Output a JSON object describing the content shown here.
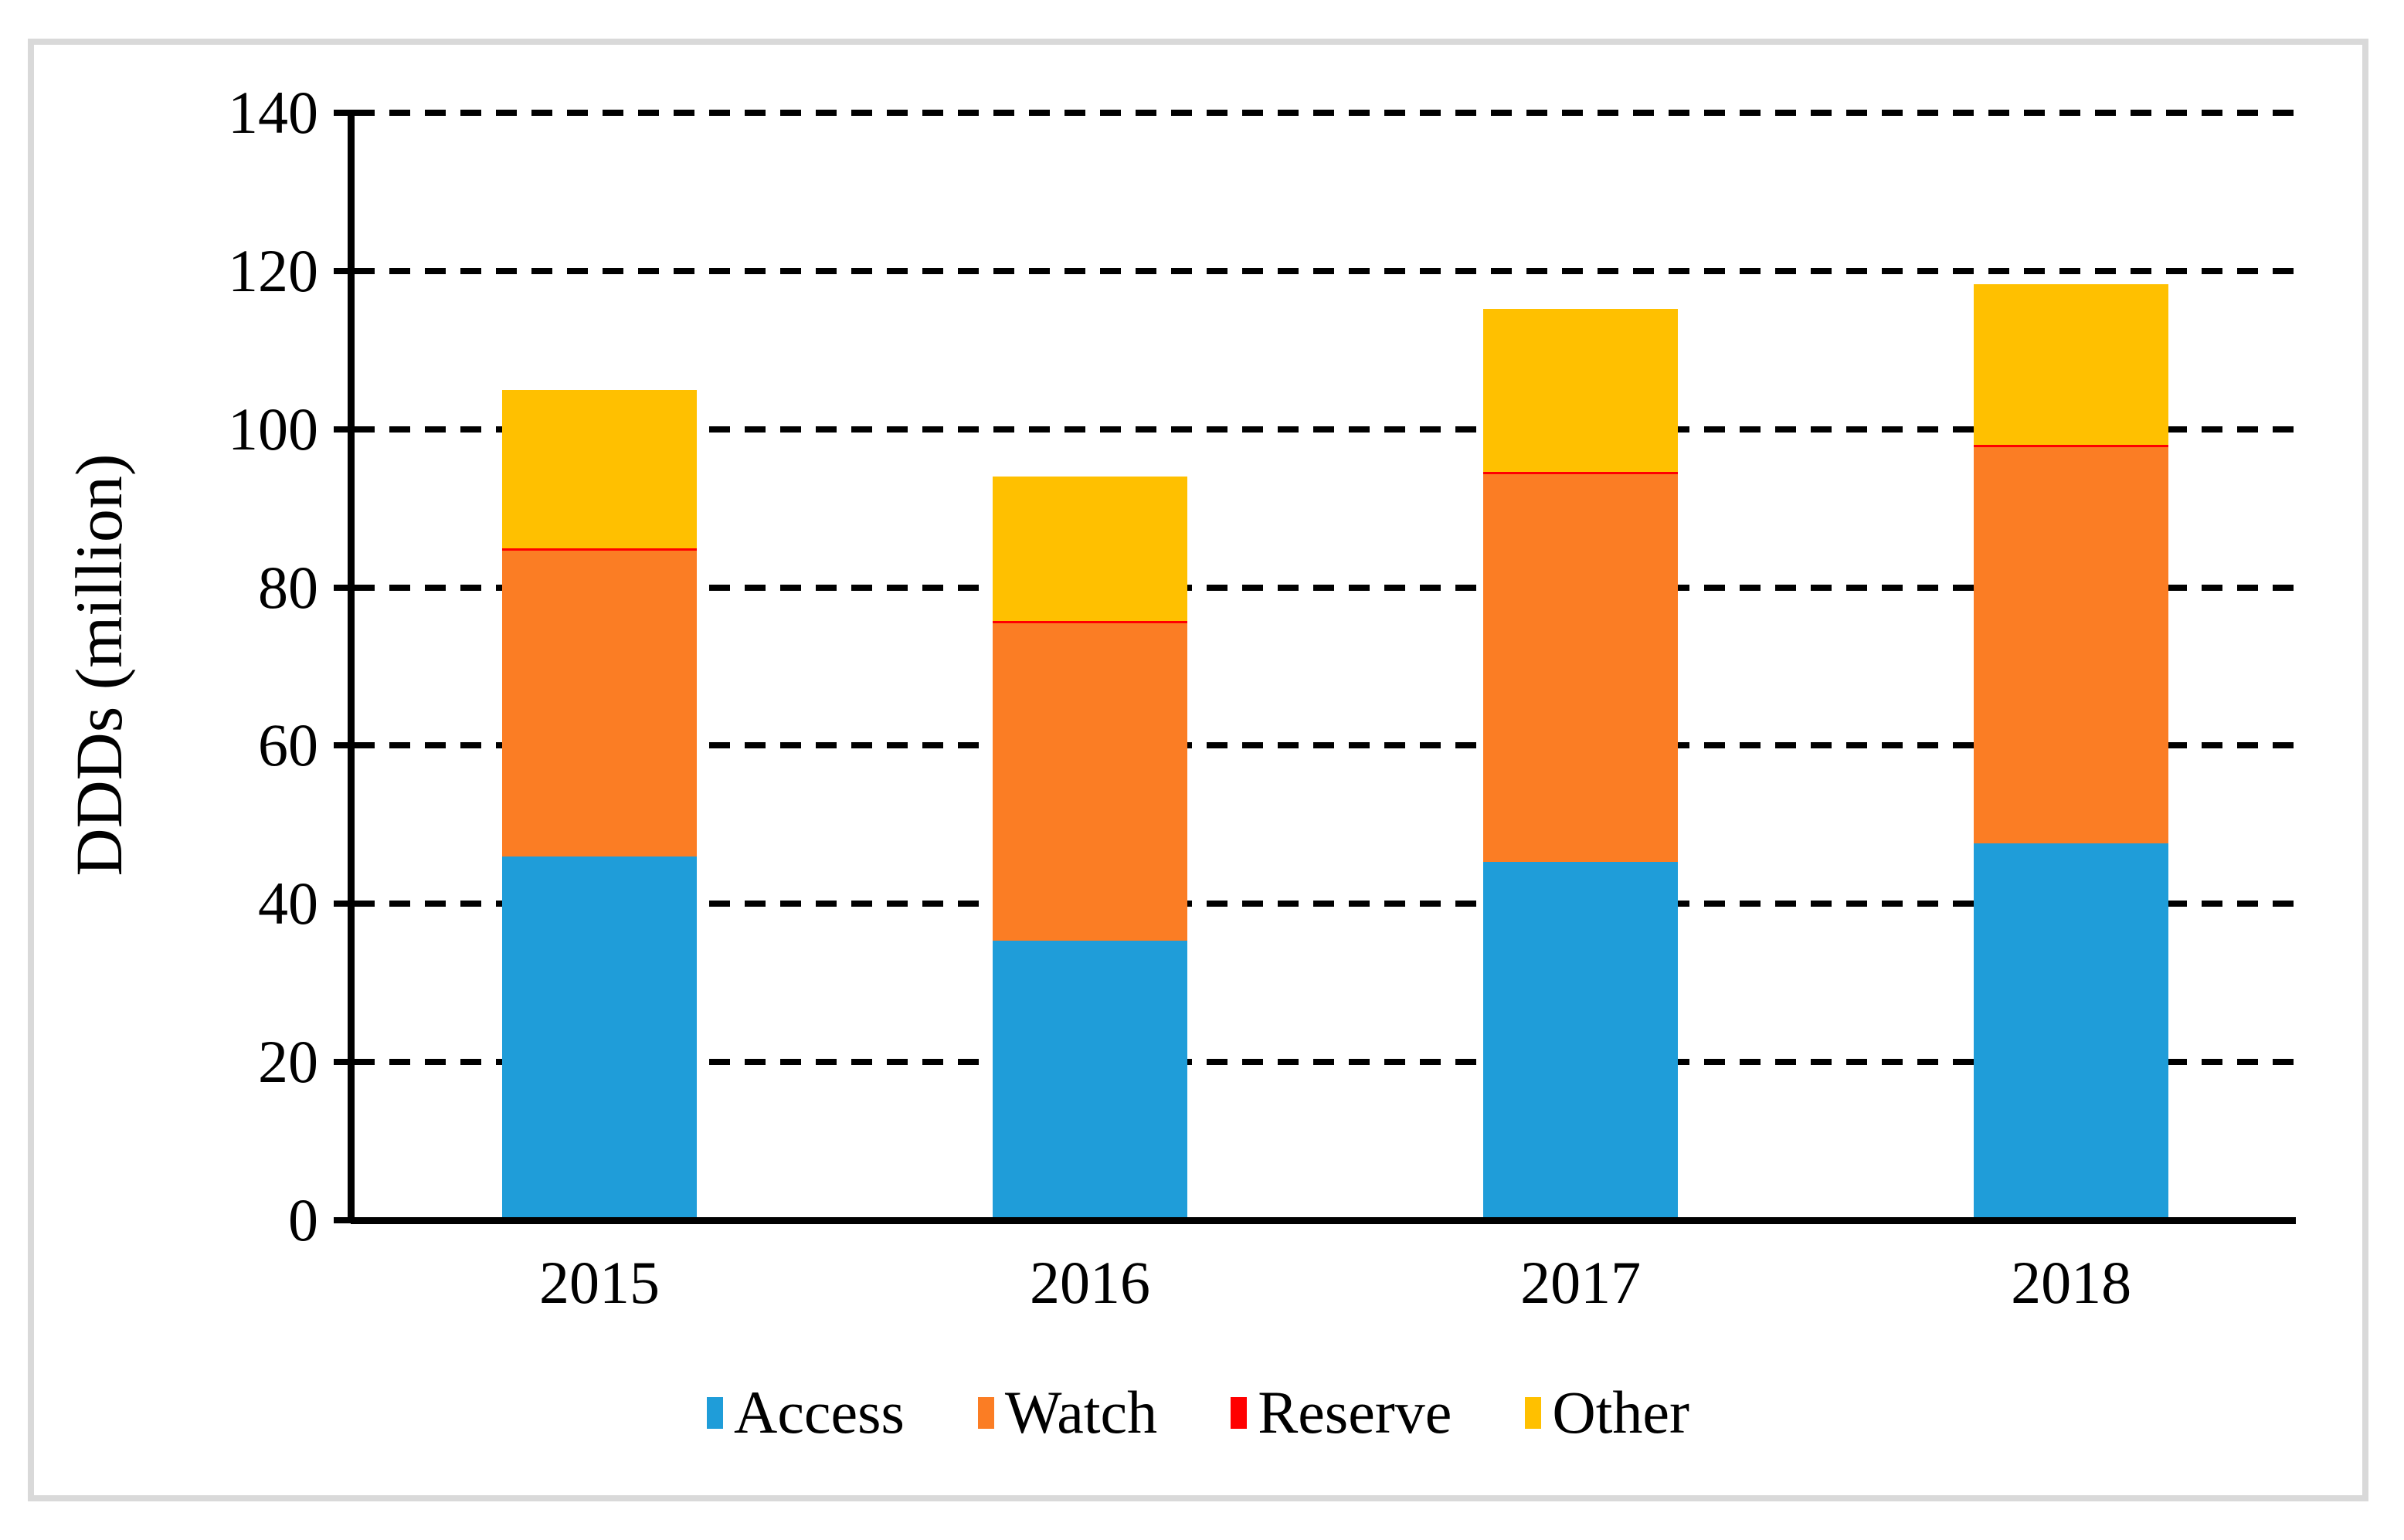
{
  "figure": {
    "background_color": "#ffffff",
    "border_color": "#d9d9d9"
  },
  "chart_data": {
    "type": "bar",
    "stacked": true,
    "title": "",
    "categories": [
      "2015",
      "2016",
      "2017",
      "2018"
    ],
    "series": [
      {
        "name": "Access",
        "color": "#1f9dd9",
        "values": [
          46.0,
          35.3,
          45.3,
          47.6
        ]
      },
      {
        "name": "Watch",
        "color": "#fb7d24",
        "values": [
          38.6,
          40.2,
          49.0,
          50.1
        ]
      },
      {
        "name": "Reserve",
        "color": "#ff0000",
        "values": [
          0.3,
          0.3,
          0.3,
          0.3
        ]
      },
      {
        "name": "Other",
        "color": "#ffc000",
        "values": [
          20.1,
          18.2,
          20.6,
          20.3
        ]
      }
    ],
    "stack_totals": [
      105.0,
      94.0,
      115.2,
      118.3
    ],
    "xlabel": "",
    "ylabel": "DDDs (million)",
    "ylim": [
      0,
      140
    ],
    "ytick_step": 20,
    "yticks": [
      "0",
      "20",
      "40",
      "60",
      "80",
      "100",
      "120",
      "140"
    ],
    "grid": "horizontal dashed black lines at every 20 units, including top at 140",
    "axis_color": "#000000",
    "legend_position": "bottom-center",
    "legend_items": [
      "Access",
      "Watch",
      "Reserve",
      "Other"
    ]
  }
}
